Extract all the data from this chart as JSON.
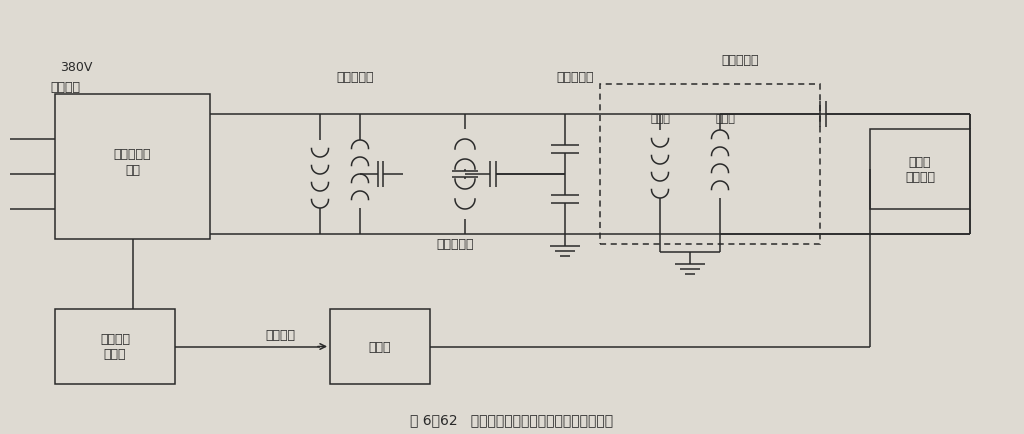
{
  "bg_color": "#c8c4bc",
  "paper_color": "#dedad2",
  "line_color": "#2a2a2a",
  "title": "图 6－62   变压器感应耐压、局部放电接线示意图",
  "label_380v": "380V",
  "label_3phase": "三相输入",
  "label_wujufang": "无局放变频\n电源",
  "label_lici": "励磁变压器",
  "label_buchang": "补偿电抗器",
  "label_rongfen": "电容分压器",
  "label_beishi": "被试变压器",
  "label_dianya": "低压侧",
  "label_gaoya": "高压侧",
  "label_bipin": "变频电源\n控制箱",
  "label_tongbu": "同步电源",
  "label_jufangy1": "局放仪",
  "label_jufangy2": "局放仪\n检测阻抗",
  "font_size": 9,
  "font_size_small": 8,
  "font_size_title": 10
}
